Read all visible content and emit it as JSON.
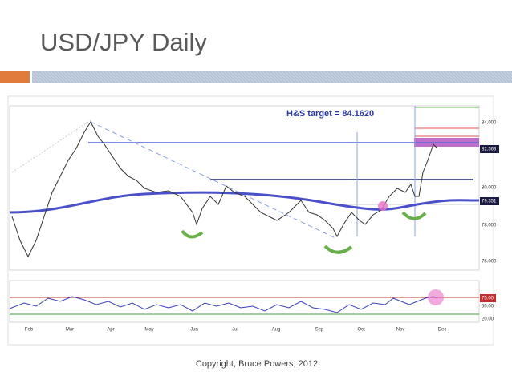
{
  "header": {
    "title": "USD/JPY Daily"
  },
  "chart": {
    "annotation": "H&S target = 84.1620",
    "x_labels": [
      "Feb",
      "Mar",
      "Apr",
      "May",
      "Jun",
      "Jul",
      "Aug",
      "Sep",
      "Oct",
      "Nov",
      "Dec"
    ],
    "y_labels": [
      "84.000",
      "82.363",
      "80.000",
      "79.351",
      "78.000",
      "76.000"
    ],
    "rsi_labels": [
      "75.00",
      "50.00",
      "20.00"
    ]
  },
  "footer": {
    "copyright": "Copyright, Bruce Powers, 2012"
  }
}
